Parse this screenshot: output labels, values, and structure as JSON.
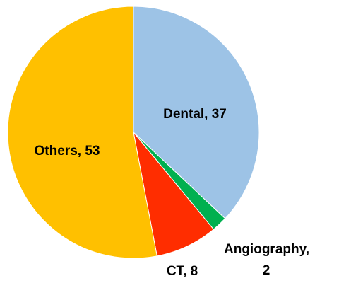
{
  "chart_data": {
    "type": "pie",
    "values": [
      37,
      2,
      8,
      53
    ],
    "value_labels": [
      "Dental, 37",
      "Angiography, 2",
      "CT, 8",
      "Others, 53"
    ],
    "colors": [
      "#9dc3e6",
      "#00b050",
      "#ff2d00",
      "#ffc000"
    ]
  }
}
